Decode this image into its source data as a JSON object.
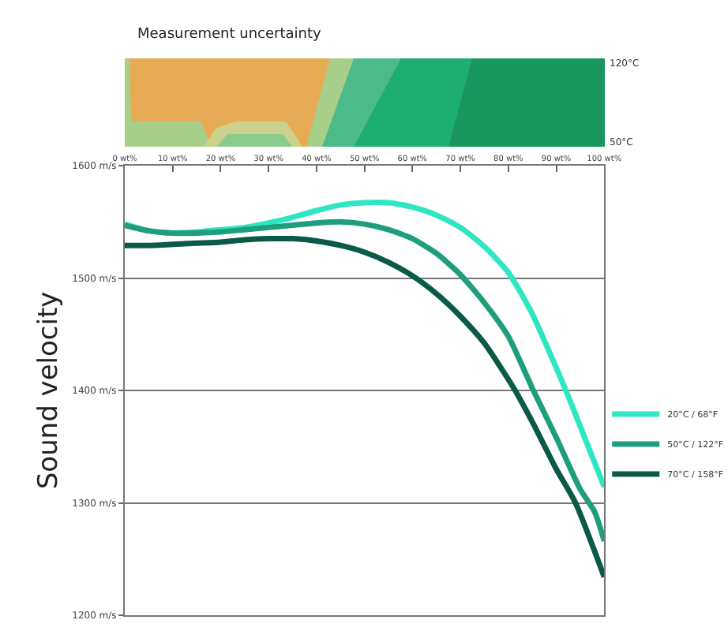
{
  "chart_data": {
    "type": "line",
    "ylabel": "Sound velocity",
    "annotations": [
      "Measurement uncertainty",
      "120°C",
      "50°C"
    ],
    "series": [
      {
        "name": "20°C / 68°F",
        "color": "#2ee6c2",
        "x": [
          0,
          5,
          10,
          15,
          20,
          25,
          30,
          35,
          40,
          45,
          50,
          55,
          60,
          65,
          70,
          75,
          80,
          85,
          90,
          92,
          95,
          100
        ],
        "values": [
          1548,
          1542,
          1540,
          1541,
          1543,
          1545,
          1549,
          1554,
          1560,
          1565,
          1567,
          1567,
          1563,
          1556,
          1545,
          1528,
          1505,
          1468,
          1420,
          1400,
          1368,
          1314
        ]
      },
      {
        "name": "50°C / 122°F",
        "color": "#1f9e7e",
        "x": [
          0,
          5,
          10,
          15,
          20,
          25,
          30,
          35,
          40,
          45,
          50,
          55,
          60,
          65,
          70,
          75,
          80,
          85,
          90,
          95,
          98,
          100
        ],
        "values": [
          1547,
          1542,
          1540,
          1540,
          1541,
          1543,
          1545,
          1547,
          1549,
          1550,
          1548,
          1543,
          1535,
          1522,
          1503,
          1478,
          1448,
          1402,
          1358,
          1312,
          1292,
          1266
        ]
      },
      {
        "name": "70°C / 158°F",
        "color": "#0b5a48",
        "x": [
          0,
          5,
          10,
          15,
          20,
          25,
          30,
          35,
          40,
          45,
          50,
          55,
          60,
          65,
          70,
          75,
          81,
          85,
          90,
          94,
          100
        ],
        "values": [
          1529,
          1529,
          1530,
          1531,
          1532,
          1534,
          1535,
          1535,
          1533,
          1529,
          1523,
          1514,
          1502,
          1486,
          1466,
          1442,
          1403,
          1372,
          1330,
          1300,
          1234
        ]
      }
    ],
    "xlim": [
      0,
      100
    ],
    "xticks": [
      {
        "value": 0,
        "label": "0 wt%"
      },
      {
        "value": 10,
        "label": "10 wt%"
      },
      {
        "value": 20,
        "label": "20 wt%"
      },
      {
        "value": 30,
        "label": "30 wt%"
      },
      {
        "value": 40,
        "label": "40 wt%"
      },
      {
        "value": 50,
        "label": "50 wt%"
      },
      {
        "value": 60,
        "label": "60 wt%"
      },
      {
        "value": 70,
        "label": "70 wt%"
      },
      {
        "value": 80,
        "label": "80 wt%"
      },
      {
        "value": 90,
        "label": "90 wt%"
      },
      {
        "value": 100,
        "label": "100 wt%"
      }
    ],
    "ylim": [
      1200,
      1600
    ],
    "yticks": [
      {
        "value": 1200,
        "label": "1200 m/s"
      },
      {
        "value": 1300,
        "label": "1300 m/s"
      },
      {
        "value": 1400,
        "label": "1400 m/s"
      },
      {
        "value": 1500,
        "label": "1500 m/s"
      },
      {
        "value": 1600,
        "label": "1600 m/s"
      }
    ],
    "grid": "y",
    "legend": "right",
    "marker": "none",
    "line_style": "solid"
  }
}
